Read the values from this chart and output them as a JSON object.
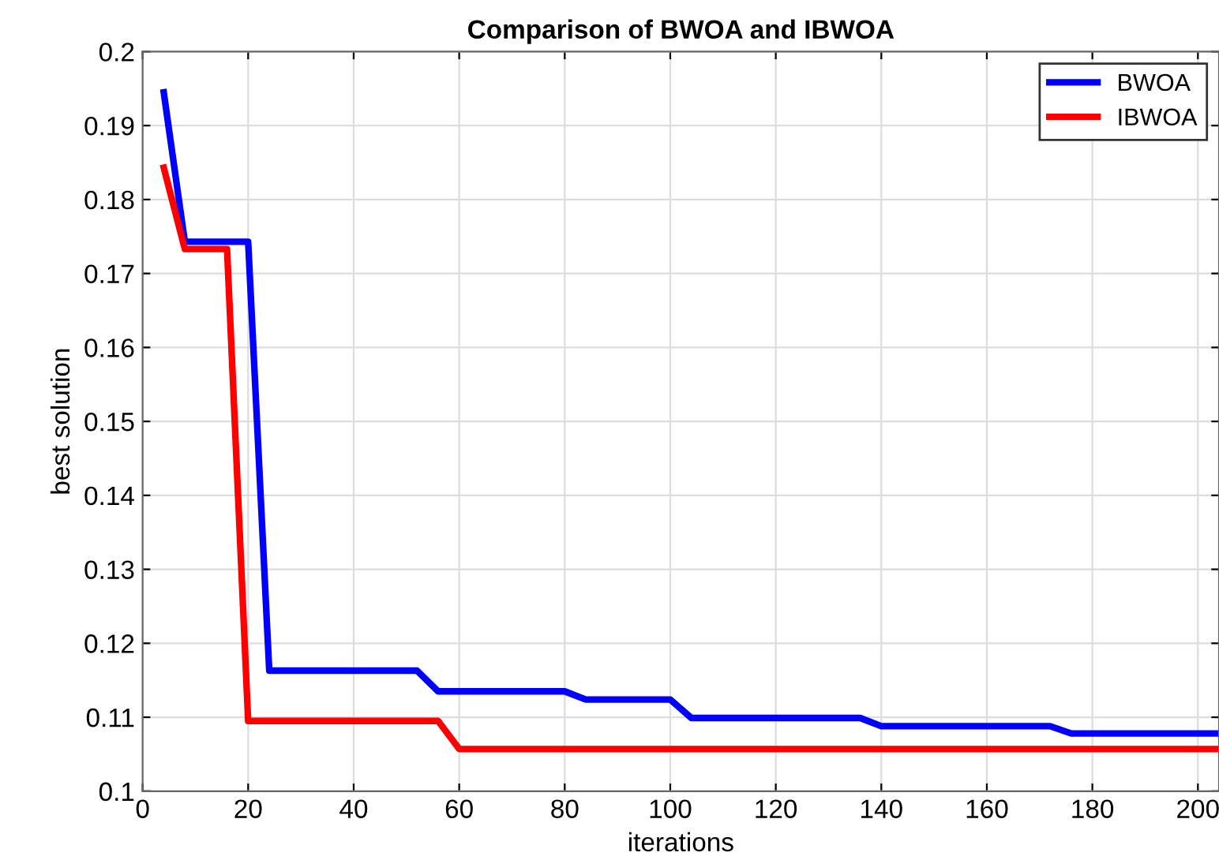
{
  "chart_data": {
    "type": "line",
    "title": "Comparison of BWOA and IBWOA",
    "xlabel": "iterations",
    "ylabel": "best solution",
    "series": [
      {
        "name": "BWOA",
        "color": "#0000ff",
        "x": [
          4,
          8,
          20,
          24,
          52,
          56,
          80,
          84,
          100,
          104,
          136,
          140,
          172,
          176,
          204
        ],
        "values": [
          0.1945,
          0.1743,
          0.1743,
          0.1163,
          0.1163,
          0.1135,
          0.1135,
          0.1124,
          0.1124,
          0.1099,
          0.1099,
          0.1088,
          0.1088,
          0.1078,
          0.1078
        ]
      },
      {
        "name": "IBWOA",
        "color": "#ff0000",
        "x": [
          4,
          8,
          16,
          20,
          56,
          60,
          204
        ],
        "values": [
          0.1843,
          0.1733,
          0.1733,
          0.1095,
          0.1095,
          0.1057,
          0.1057
        ]
      }
    ],
    "xlim": [
      0,
      204
    ],
    "xticks": [
      0,
      20,
      40,
      60,
      80,
      100,
      120,
      140,
      160,
      180,
      200
    ],
    "ylim": [
      0.1,
      0.2
    ],
    "yticks": [
      0.1,
      0.11,
      0.12,
      0.13,
      0.14,
      0.15,
      0.16,
      0.17,
      0.18,
      0.19,
      0.2
    ],
    "grid": true,
    "legend": "top right",
    "line_style": "solid"
  }
}
